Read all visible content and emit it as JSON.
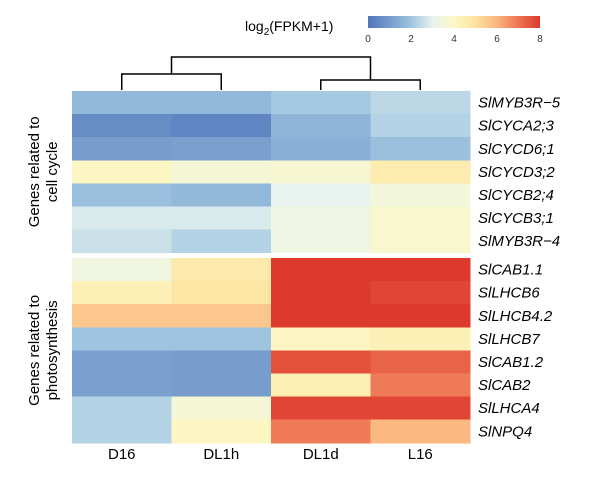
{
  "chart_data": {
    "type": "heatmap",
    "legend": {
      "title_main": "log",
      "title_sub": "2",
      "title_rest": "(FPKM+1)",
      "ticks": [
        0,
        2,
        4,
        6,
        8
      ],
      "range": [
        0,
        8
      ]
    },
    "colorscale": [
      [
        0,
        "#4f75ba"
      ],
      [
        2,
        "#9ec4e0"
      ],
      [
        3,
        "#e8f3ef"
      ],
      [
        4,
        "#fcf8c6"
      ],
      [
        5,
        "#fde3a0"
      ],
      [
        6,
        "#fbb47e"
      ],
      [
        7,
        "#ee7453"
      ],
      [
        8,
        "#db3a2d"
      ]
    ],
    "columns": [
      "D16",
      "DL1h",
      "DL1d",
      "L16"
    ],
    "groups": [
      {
        "name_line1": "Genes related to",
        "name_line2": "cell cycle",
        "genes": [
          "SlMYB3R−5",
          "SlCYCA2;3",
          "SlCYCD6;1",
          "SlCYCD3;2",
          "SlCYCB2;4",
          "SlCYCB3;1",
          "SlMYB3R−4"
        ],
        "values": [
          [
            1.7,
            1.7,
            2.1,
            2.4
          ],
          [
            0.6,
            0.4,
            1.6,
            2.3
          ],
          [
            1.0,
            1.1,
            1.5,
            1.9
          ],
          [
            4.1,
            3.6,
            3.7,
            4.6
          ],
          [
            1.9,
            1.7,
            3.0,
            3.5
          ],
          [
            2.8,
            2.8,
            3.3,
            3.8
          ],
          [
            2.6,
            2.3,
            3.3,
            3.8
          ]
        ]
      },
      {
        "name_line1": "Genes related to",
        "name_line2": "photosynthesis",
        "genes": [
          "SlCAB1.1",
          "SlLHCB6",
          "SlLHCB4.2",
          "SlLHCB7",
          "SlCAB1.2",
          "SlCAB2",
          "SlLHCA4",
          "SlNPQ4"
        ],
        "values": [
          [
            3.4,
            4.7,
            8.0,
            8.0
          ],
          [
            4.4,
            4.9,
            8.0,
            7.8
          ],
          [
            5.6,
            5.6,
            8.0,
            8.0
          ],
          [
            2.0,
            2.0,
            4.1,
            4.4
          ],
          [
            1.1,
            1.0,
            7.6,
            7.3
          ],
          [
            1.1,
            1.0,
            4.5,
            6.9
          ],
          [
            2.3,
            3.6,
            7.8,
            7.8
          ],
          [
            2.3,
            4.1,
            6.9,
            5.9
          ]
        ]
      }
    ],
    "dendrogram": {
      "clusters": [
        [
          "D16",
          "DL1h"
        ],
        [
          "DL1d",
          "L16"
        ]
      ]
    }
  }
}
